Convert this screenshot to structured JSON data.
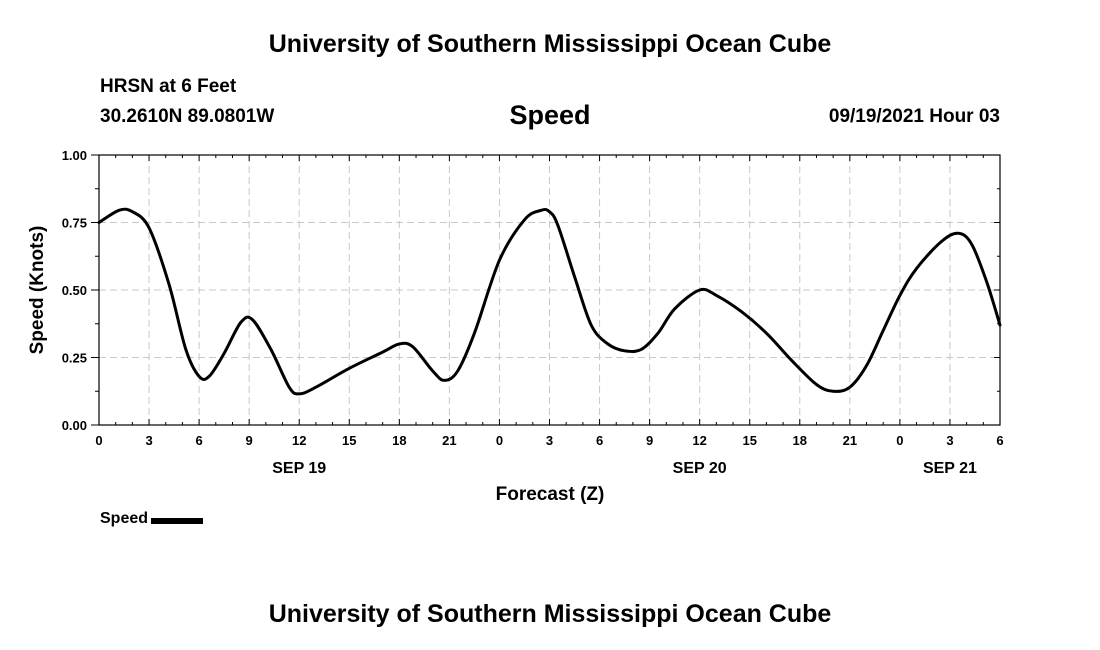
{
  "header": {
    "title_top": "University of Southern Mississippi Ocean Cube",
    "station": "HRSN at 6 Feet",
    "coords": "30.2610N  89.0801W",
    "datetime": "09/19/2021 Hour 03",
    "title_bottom": "University of Southern Mississippi Ocean Cube"
  },
  "legend": {
    "label": "Speed",
    "color": "#000000"
  },
  "chart_data": {
    "type": "line",
    "title": "Speed",
    "xlabel": "Forecast (Z)",
    "ylabel": "Speed (Knots)",
    "xlim": [
      0,
      54
    ],
    "ylim": [
      0,
      1.0
    ],
    "yticks": [
      0,
      0.25,
      0.5,
      0.75,
      1.0
    ],
    "ytick_labels": [
      "0.00",
      "0.25",
      "0.50",
      "0.75",
      "1.00"
    ],
    "xticks": [
      0,
      3,
      6,
      9,
      12,
      15,
      18,
      21,
      24,
      27,
      30,
      33,
      36,
      39,
      42,
      45,
      48,
      51,
      54
    ],
    "xtick_labels": [
      "0",
      "3",
      "6",
      "9",
      "12",
      "15",
      "18",
      "21",
      "0",
      "3",
      "6",
      "9",
      "12",
      "15",
      "18",
      "21",
      "0",
      "3",
      "6"
    ],
    "date_labels": [
      {
        "x": 12,
        "label": "SEP 19"
      },
      {
        "x": 36,
        "label": "SEP 20"
      },
      {
        "x": 51,
        "label": "SEP 21"
      }
    ],
    "grid": true,
    "series": [
      {
        "name": "Speed",
        "color": "#000000",
        "x": [
          0,
          1.2,
          2,
          3,
          4.2,
          5.2,
          6,
          6.6,
          7.5,
          8.5,
          9.2,
          10.3,
          11.4,
          12,
          13,
          15,
          17,
          18,
          18.8,
          20,
          20.7,
          21.5,
          22.5,
          24,
          25.5,
          26.5,
          27,
          27.5,
          28.5,
          29.5,
          30.5,
          31.5,
          32.5,
          33.5,
          34.5,
          36,
          37,
          38.5,
          40,
          41.5,
          43,
          44,
          45,
          46,
          47,
          48,
          49,
          50.5,
          51.5,
          52.3,
          53.2,
          54
        ],
        "values": [
          0.75,
          0.795,
          0.79,
          0.73,
          0.52,
          0.28,
          0.18,
          0.18,
          0.265,
          0.38,
          0.39,
          0.28,
          0.14,
          0.115,
          0.14,
          0.21,
          0.27,
          0.3,
          0.29,
          0.2,
          0.165,
          0.2,
          0.34,
          0.61,
          0.76,
          0.795,
          0.79,
          0.74,
          0.55,
          0.37,
          0.3,
          0.275,
          0.28,
          0.34,
          0.43,
          0.5,
          0.48,
          0.42,
          0.34,
          0.24,
          0.15,
          0.125,
          0.14,
          0.22,
          0.35,
          0.48,
          0.58,
          0.68,
          0.71,
          0.67,
          0.53,
          0.37
        ]
      }
    ]
  }
}
